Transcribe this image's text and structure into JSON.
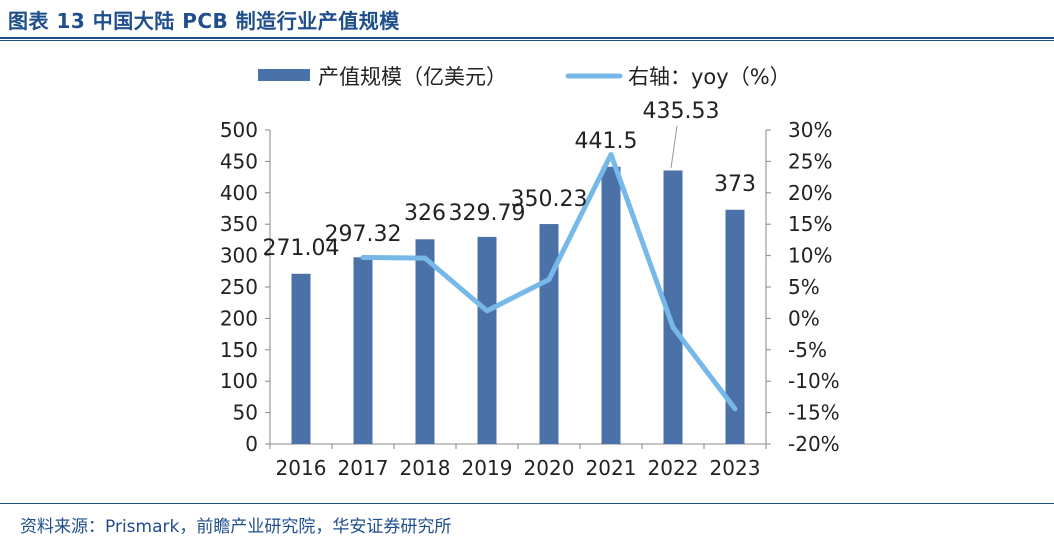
{
  "header": {
    "title": "图表 13 中国大陆 PCB 制造行业产值规模"
  },
  "footer": {
    "source": "资料来源：Prismark，前瞻产业研究院，华安证券研究所"
  },
  "colors": {
    "bar": "#4a72a8",
    "line": "#76b9e8",
    "text": "#222222",
    "accent": "#1f4e8c"
  },
  "chart_data": {
    "type": "bar",
    "categories": [
      "2016",
      "2017",
      "2018",
      "2019",
      "2020",
      "2021",
      "2022",
      "2023"
    ],
    "series": [
      {
        "name": "产值规模（亿美元）",
        "type": "bar",
        "axis": "left",
        "values": [
          271.04,
          297.32,
          326,
          329.79,
          350.23,
          441.5,
          435.53,
          373
        ],
        "labels": [
          "271.04",
          "297.32",
          "326",
          "329.79",
          "350.23",
          "441.5",
          "435.53",
          "373"
        ]
      },
      {
        "name": "右轴：yoy（%）",
        "type": "line",
        "axis": "right",
        "values": [
          null,
          9.7,
          9.6,
          1.2,
          6.2,
          26.1,
          -1.4,
          -14.4
        ]
      }
    ],
    "y_left": {
      "min": 0,
      "max": 500,
      "ticks": [
        "0",
        "50",
        "100",
        "150",
        "200",
        "250",
        "300",
        "350",
        "400",
        "450",
        "500"
      ]
    },
    "y_right": {
      "min": -20,
      "max": 30,
      "ticks": [
        "-20%",
        "-15%",
        "-10%",
        "-5%",
        "0%",
        "5%",
        "10%",
        "15%",
        "20%",
        "25%",
        "30%"
      ]
    },
    "legend": "top"
  }
}
